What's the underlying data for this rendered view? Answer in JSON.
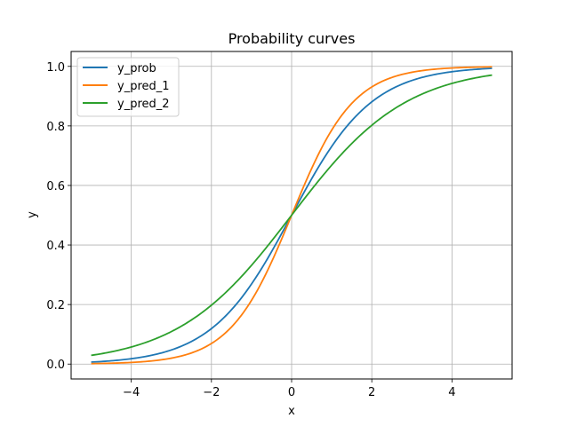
{
  "chart_data": {
    "type": "line",
    "title": "Probability curves",
    "xlabel": "x",
    "ylabel": "y",
    "xlim": [
      -5.5,
      5.5
    ],
    "ylim": [
      -0.05,
      1.05
    ],
    "xticks": [
      -4,
      -2,
      0,
      2,
      4
    ],
    "xtick_labels": [
      "−4",
      "−2",
      "0",
      "2",
      "4"
    ],
    "yticks": [
      0.0,
      0.2,
      0.4,
      0.6,
      0.8,
      1.0
    ],
    "ytick_labels": [
      "0.0",
      "0.2",
      "0.4",
      "0.6",
      "0.8",
      "1.0"
    ],
    "grid": true,
    "legend_position": "upper left",
    "x_range": [
      -5,
      5
    ],
    "series": [
      {
        "name": "y_prob",
        "color": "#1f77b4",
        "formula": "1/(1+exp(-1.0*x))",
        "k": 1.0,
        "x": [
          -5,
          -4,
          -3,
          -2,
          -1,
          0,
          1,
          2,
          3,
          4,
          5
        ],
        "values": [
          0.007,
          0.018,
          0.047,
          0.119,
          0.269,
          0.5,
          0.731,
          0.881,
          0.953,
          0.982,
          0.993
        ]
      },
      {
        "name": "y_pred_1",
        "color": "#ff7f0e",
        "formula": "1/(1+exp(-1.3*x))",
        "k": 1.3,
        "x": [
          -5,
          -4,
          -3,
          -2,
          -1,
          0,
          1,
          2,
          3,
          4,
          5
        ],
        "values": [
          0.0015,
          0.0055,
          0.02,
          0.069,
          0.214,
          0.5,
          0.786,
          0.931,
          0.98,
          0.9945,
          0.9985
        ]
      },
      {
        "name": "y_pred_2",
        "color": "#2ca02c",
        "formula": "1/(1+exp(-0.7*x))",
        "k": 0.7,
        "x": [
          -5,
          -4,
          -3,
          -2,
          -1,
          0,
          1,
          2,
          3,
          4,
          5
        ],
        "values": [
          0.029,
          0.057,
          0.109,
          0.198,
          0.332,
          0.5,
          0.668,
          0.802,
          0.891,
          0.943,
          0.971
        ]
      }
    ]
  }
}
